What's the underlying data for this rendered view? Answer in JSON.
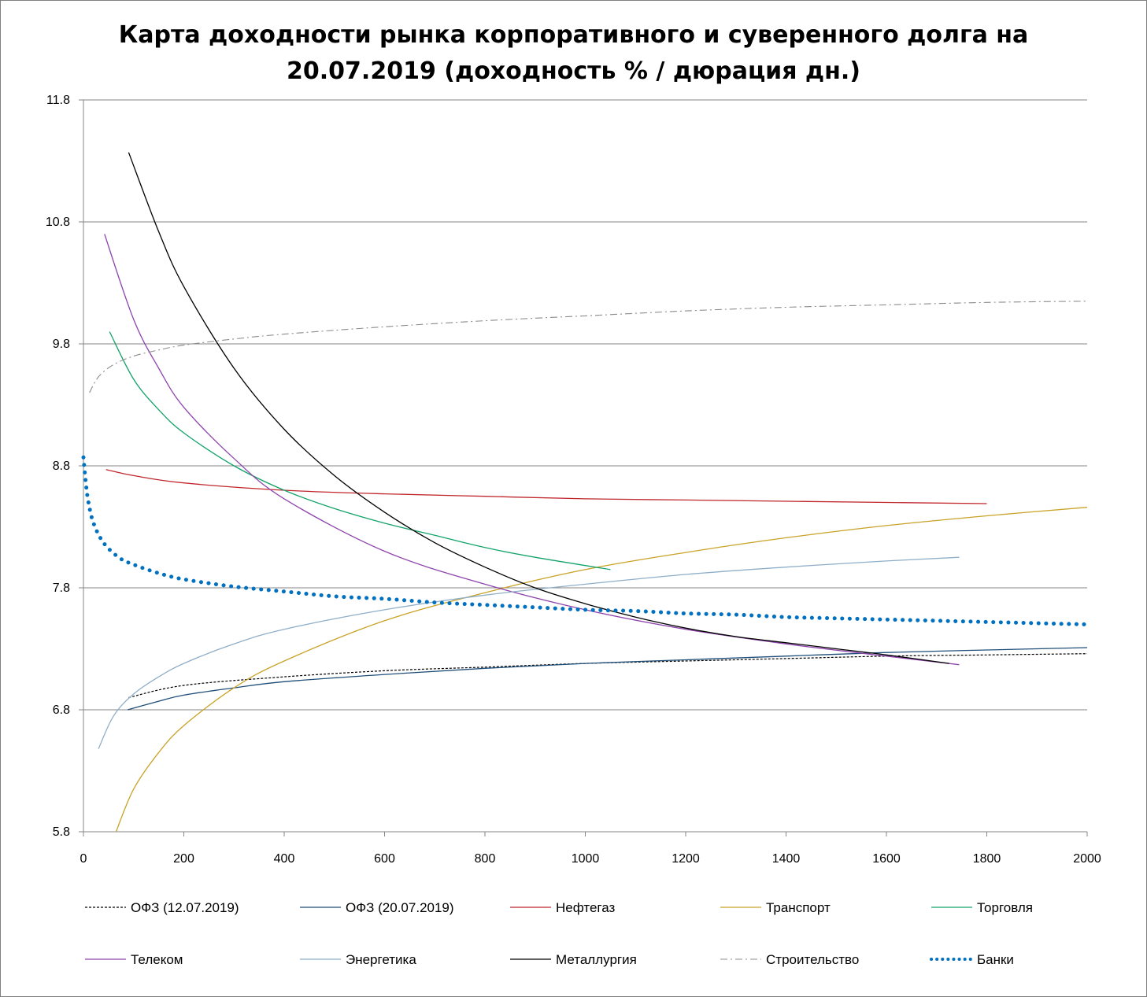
{
  "chart_data": {
    "type": "line",
    "title_lines": [
      "Карта доходности рынка корпоративного и суверенного долга на",
      "20.07.2019 (доходность % / дюрация дн.)"
    ],
    "xlabel": "",
    "ylabel": "",
    "xlim": [
      0,
      2000
    ],
    "ylim": [
      5.8,
      11.8
    ],
    "x_ticks": [
      0,
      200,
      400,
      600,
      800,
      1000,
      1200,
      1400,
      1600,
      1800,
      2000
    ],
    "y_ticks": [
      5.8,
      6.8,
      7.8,
      8.8,
      9.8,
      10.8,
      11.8
    ],
    "y_tick_labels": [
      "5.8",
      "6.8",
      "7.8",
      "8.8",
      "9.8",
      "10.8",
      "11.8"
    ],
    "grid": "horizontal",
    "legend_position": "bottom",
    "series": [
      {
        "name": "ОФЗ (12.07.2019)",
        "color": "#000000",
        "dash": "dotted-fine",
        "points": [
          [
            90,
            6.9
          ],
          [
            200,
            7.0
          ],
          [
            400,
            7.07
          ],
          [
            600,
            7.12
          ],
          [
            800,
            7.15
          ],
          [
            1000,
            7.18
          ],
          [
            1200,
            7.2
          ],
          [
            1400,
            7.22
          ],
          [
            1600,
            7.24
          ],
          [
            1800,
            7.25
          ],
          [
            2000,
            7.26
          ]
        ]
      },
      {
        "name": "ОФЗ (20.07.2019)",
        "color": "#1f4e79",
        "dash": "solid",
        "points": [
          [
            88,
            6.8
          ],
          [
            150,
            6.87
          ],
          [
            200,
            6.92
          ],
          [
            300,
            6.98
          ],
          [
            400,
            7.03
          ],
          [
            600,
            7.09
          ],
          [
            800,
            7.14
          ],
          [
            1000,
            7.18
          ],
          [
            1200,
            7.21
          ],
          [
            1400,
            7.24
          ],
          [
            1600,
            7.27
          ],
          [
            1800,
            7.29
          ],
          [
            2000,
            7.31
          ]
        ]
      },
      {
        "name": "Нефтегаз",
        "color": "#c0262c",
        "dash": "solid",
        "points": [
          [
            45,
            8.77
          ],
          [
            100,
            8.72
          ],
          [
            200,
            8.66
          ],
          [
            400,
            8.6
          ],
          [
            600,
            8.57
          ],
          [
            800,
            8.55
          ],
          [
            1000,
            8.53
          ],
          [
            1200,
            8.52
          ],
          [
            1400,
            8.51
          ],
          [
            1600,
            8.5
          ],
          [
            1800,
            8.49
          ]
        ]
      },
      {
        "name": "Транспорт",
        "color": "#c9a227",
        "dash": "solid",
        "points": [
          [
            65,
            5.8
          ],
          [
            100,
            6.15
          ],
          [
            150,
            6.45
          ],
          [
            200,
            6.67
          ],
          [
            300,
            6.98
          ],
          [
            400,
            7.2
          ],
          [
            600,
            7.53
          ],
          [
            800,
            7.76
          ],
          [
            1000,
            7.95
          ],
          [
            1200,
            8.09
          ],
          [
            1400,
            8.21
          ],
          [
            1600,
            8.31
          ],
          [
            1800,
            8.39
          ],
          [
            2000,
            8.46
          ]
        ]
      },
      {
        "name": "Торговля",
        "color": "#13a36a",
        "dash": "solid",
        "points": [
          [
            52,
            9.9
          ],
          [
            100,
            9.51
          ],
          [
            150,
            9.26
          ],
          [
            200,
            9.07
          ],
          [
            300,
            8.8
          ],
          [
            400,
            8.6
          ],
          [
            500,
            8.45
          ],
          [
            600,
            8.33
          ],
          [
            700,
            8.23
          ],
          [
            800,
            8.13
          ],
          [
            900,
            8.05
          ],
          [
            1050,
            7.95
          ]
        ]
      },
      {
        "name": "Телеком",
        "color": "#8e44ad",
        "dash": "solid",
        "points": [
          [
            42,
            10.7
          ],
          [
            100,
            10.0
          ],
          [
            150,
            9.6
          ],
          [
            200,
            9.28
          ],
          [
            300,
            8.86
          ],
          [
            400,
            8.53
          ],
          [
            600,
            8.1
          ],
          [
            800,
            7.83
          ],
          [
            1000,
            7.62
          ],
          [
            1200,
            7.46
          ],
          [
            1400,
            7.34
          ],
          [
            1600,
            7.24
          ],
          [
            1745,
            7.17
          ]
        ]
      },
      {
        "name": "Энергетика",
        "color": "#8faec8",
        "dash": "solid",
        "points": [
          [
            30,
            6.48
          ],
          [
            60,
            6.75
          ],
          [
            100,
            6.93
          ],
          [
            150,
            7.07
          ],
          [
            200,
            7.18
          ],
          [
            300,
            7.34
          ],
          [
            400,
            7.46
          ],
          [
            600,
            7.62
          ],
          [
            800,
            7.74
          ],
          [
            1000,
            7.83
          ],
          [
            1200,
            7.91
          ],
          [
            1400,
            7.97
          ],
          [
            1600,
            8.02
          ],
          [
            1745,
            8.05
          ]
        ]
      },
      {
        "name": "Металлургия",
        "color": "#000000",
        "dash": "solid",
        "points": [
          [
            90,
            11.37
          ],
          [
            150,
            10.72
          ],
          [
            200,
            10.27
          ],
          [
            300,
            9.6
          ],
          [
            400,
            9.1
          ],
          [
            500,
            8.72
          ],
          [
            600,
            8.42
          ],
          [
            700,
            8.17
          ],
          [
            800,
            7.97
          ],
          [
            900,
            7.8
          ],
          [
            1000,
            7.67
          ],
          [
            1100,
            7.56
          ],
          [
            1200,
            7.47
          ],
          [
            1300,
            7.4
          ],
          [
            1400,
            7.35
          ],
          [
            1500,
            7.3
          ],
          [
            1600,
            7.25
          ],
          [
            1725,
            7.18
          ]
        ]
      },
      {
        "name": "Строительство",
        "color": "#8c8c8c",
        "dash": "dash-dot",
        "points": [
          [
            12,
            9.4
          ],
          [
            30,
            9.53
          ],
          [
            60,
            9.63
          ],
          [
            100,
            9.7
          ],
          [
            150,
            9.75
          ],
          [
            200,
            9.79
          ],
          [
            300,
            9.84
          ],
          [
            400,
            9.88
          ],
          [
            600,
            9.94
          ],
          [
            800,
            9.99
          ],
          [
            1000,
            10.03
          ],
          [
            1200,
            10.07
          ],
          [
            1400,
            10.1
          ],
          [
            1600,
            10.12
          ],
          [
            1800,
            10.14
          ],
          [
            2000,
            10.15
          ]
        ]
      },
      {
        "name": "Банки",
        "color": "#0070c0",
        "dash": "dotted-bold",
        "points": [
          [
            0,
            8.87
          ],
          [
            5,
            8.65
          ],
          [
            10,
            8.5
          ],
          [
            20,
            8.33
          ],
          [
            40,
            8.17
          ],
          [
            70,
            8.05
          ],
          [
            100,
            7.99
          ],
          [
            150,
            7.92
          ],
          [
            200,
            7.87
          ],
          [
            300,
            7.81
          ],
          [
            400,
            7.77
          ],
          [
            500,
            7.73
          ],
          [
            600,
            7.71
          ],
          [
            700,
            7.68
          ],
          [
            800,
            7.66
          ],
          [
            900,
            7.64
          ],
          [
            1000,
            7.62
          ],
          [
            1100,
            7.61
          ],
          [
            1200,
            7.59
          ],
          [
            1300,
            7.58
          ],
          [
            1400,
            7.56
          ],
          [
            1500,
            7.55
          ],
          [
            1600,
            7.54
          ],
          [
            1700,
            7.53
          ],
          [
            1800,
            7.52
          ],
          [
            1900,
            7.51
          ],
          [
            2000,
            7.5
          ]
        ]
      }
    ]
  }
}
